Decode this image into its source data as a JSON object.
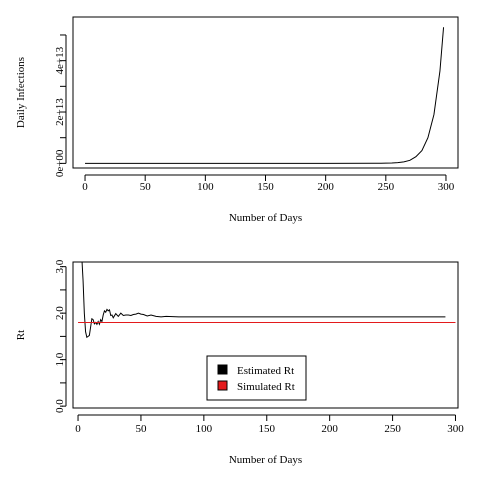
{
  "chart_data": [
    {
      "type": "line",
      "title": "",
      "xlabel": "Number of Days",
      "ylabel": "Daily Infections",
      "xlim": [
        -10,
        310
      ],
      "ylim": [
        -1800000000000.0,
        57000000000000.0
      ],
      "xticks": [
        0,
        50,
        100,
        150,
        200,
        250,
        300
      ],
      "xtick_labels": [
        "0",
        "50",
        "100",
        "150",
        "200",
        "250",
        "300"
      ],
      "yticks": [
        0,
        10000000000000.0,
        20000000000000.0,
        30000000000000.0,
        40000000000000.0,
        50000000000000.0
      ],
      "ytick_labels": [
        "0e+00",
        "",
        "2e+13",
        "",
        "4e+13",
        ""
      ],
      "grid": false,
      "series": [
        {
          "color": "#000000",
          "x": [
            0,
            50,
            100,
            150,
            200,
            240,
            250,
            255,
            260,
            265,
            270,
            275,
            280,
            285,
            290,
            295,
            298
          ],
          "y": [
            0,
            0,
            0,
            0,
            0,
            30000000000.0,
            90000000000.0,
            160000000000.0,
            300000000000.0,
            600000000000.0,
            1200000000000.0,
            2600000000000.0,
            5000000000000.0,
            10000000000000.0,
            19000000000000.0,
            36000000000000.0,
            53000000000000.0
          ]
        }
      ]
    },
    {
      "type": "line",
      "title": "",
      "xlabel": "Number of Days",
      "ylabel": "Rt",
      "xlim": [
        -4,
        302
      ],
      "ylim": [
        -0.04,
        3.1
      ],
      "xticks": [
        0,
        50,
        100,
        150,
        200,
        250,
        300
      ],
      "xtick_labels": [
        "0",
        "50",
        "100",
        "150",
        "200",
        "250",
        "300"
      ],
      "yticks": [
        0,
        0.5,
        1,
        1.5,
        2,
        2.5,
        3
      ],
      "ytick_labels": [
        "0.0",
        "",
        "1.0",
        "",
        "2.0",
        "",
        "3.0"
      ],
      "grid": false,
      "legend": {
        "position": "bottom-center",
        "entries": [
          {
            "label": "Estimated Rt",
            "color": "#000000"
          },
          {
            "label": "Simulated Rt",
            "color": "#e31a1c"
          }
        ]
      },
      "series": [
        {
          "name": "Estimated Rt",
          "color": "#000000",
          "x": [
            3,
            4,
            5,
            6,
            7,
            8,
            9,
            10,
            11,
            12,
            13,
            14,
            15,
            16,
            17,
            18,
            19,
            20,
            21,
            22,
            23,
            24,
            25,
            26,
            27,
            28,
            30,
            32,
            34,
            36,
            38,
            40,
            42,
            44,
            46,
            48,
            50,
            52,
            55,
            58,
            62,
            66,
            70,
            80,
            100,
            150,
            200,
            250,
            292
          ],
          "y": [
            3.2,
            2.7,
            2.0,
            1.6,
            1.48,
            1.5,
            1.52,
            1.7,
            1.88,
            1.86,
            1.77,
            1.8,
            1.76,
            1.82,
            1.76,
            1.86,
            1.82,
            1.96,
            2.05,
            2.02,
            2.08,
            2.05,
            2.07,
            1.95,
            1.96,
            1.9,
            1.99,
            1.93,
            2.0,
            1.95,
            1.96,
            1.96,
            1.95,
            1.97,
            1.98,
            2.0,
            1.98,
            1.97,
            1.94,
            1.96,
            1.93,
            1.92,
            1.93,
            1.92,
            1.92,
            1.92,
            1.92,
            1.92,
            1.92
          ]
        },
        {
          "name": "Simulated Rt",
          "color": "#e31a1c",
          "x": [
            0,
            300
          ],
          "y": [
            1.8,
            1.8
          ]
        }
      ]
    }
  ]
}
